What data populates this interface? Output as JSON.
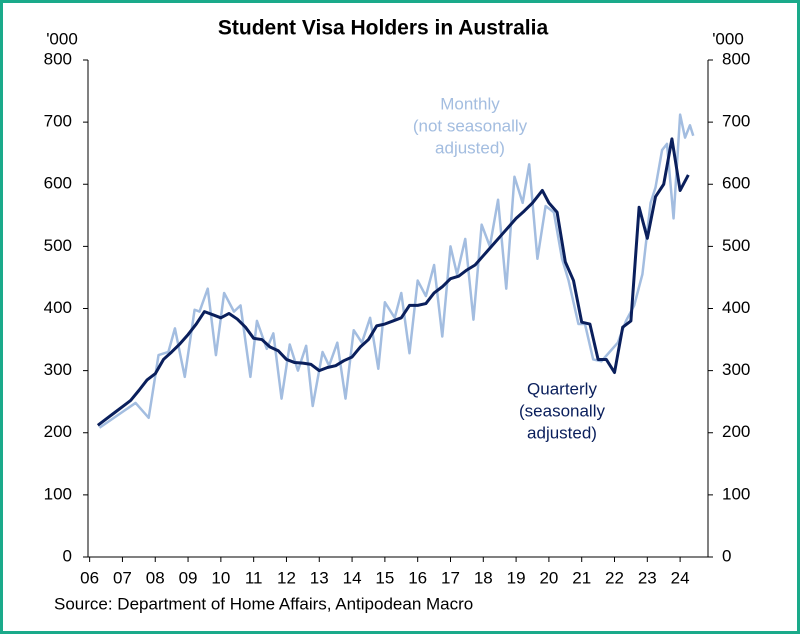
{
  "chart_data": {
    "type": "line",
    "title": "Student Visa Holders in Australia",
    "y_unit": "'000",
    "y2_unit": "'000",
    "source": "Source: Department of Home Affairs, Antipodean Macro",
    "annotations": [
      {
        "lines": [
          "Monthly",
          "(not seasonally",
          "adjusted)"
        ],
        "color": "#a3bde0"
      },
      {
        "lines": [
          "Quarterly",
          "(seasonally",
          "adjusted)"
        ],
        "color": "#0a1f5c"
      }
    ],
    "xlim": [
      5.95,
      24.85
    ],
    "xticks": [
      {
        "value": 6,
        "label": "06"
      },
      {
        "value": 7,
        "label": "07"
      },
      {
        "value": 8,
        "label": "08"
      },
      {
        "value": 9,
        "label": "09"
      },
      10,
      11,
      12,
      13,
      14,
      15,
      16,
      17,
      18,
      19,
      20,
      21,
      22,
      23,
      24
    ],
    "ylim": [
      0,
      800
    ],
    "yticks": [
      0,
      100,
      200,
      300,
      400,
      500,
      600,
      700,
      800
    ],
    "y2lim": [
      0,
      800
    ],
    "y2ticks": [
      0,
      100,
      200,
      300,
      400,
      500,
      600,
      700,
      800
    ],
    "series": [
      {
        "name": "Monthly",
        "color": "#a3bde0",
        "x": [
          6.3,
          7.4,
          7.8,
          8.1,
          8.4,
          8.6,
          8.9,
          9.2,
          9.35,
          9.6,
          9.85,
          10.1,
          10.4,
          10.6,
          10.9,
          11.1,
          11.4,
          11.6,
          11.85,
          12.1,
          12.35,
          12.6,
          12.8,
          13.1,
          13.3,
          13.55,
          13.8,
          14.05,
          14.3,
          14.55,
          14.8,
          15.0,
          15.3,
          15.5,
          15.75,
          16.0,
          16.25,
          16.5,
          16.75,
          17.0,
          17.2,
          17.45,
          17.7,
          17.95,
          18.2,
          18.45,
          18.7,
          18.95,
          19.2,
          19.4,
          19.65,
          19.9,
          20.15,
          20.4,
          20.6,
          20.9,
          21.1,
          21.35,
          21.6,
          21.85,
          22.1,
          22.35,
          22.6,
          22.85,
          23.1,
          23.25,
          23.45,
          23.6,
          23.8,
          24.0,
          24.15,
          24.3,
          24.4
        ],
        "values": [
          208,
          248,
          224,
          325,
          330,
          368,
          290,
          398,
          395,
          432,
          325,
          425,
          395,
          405,
          290,
          380,
          335,
          360,
          255,
          342,
          300,
          340,
          243,
          330,
          308,
          345,
          255,
          365,
          345,
          385,
          303,
          410,
          385,
          425,
          328,
          445,
          420,
          470,
          355,
          500,
          455,
          512,
          382,
          535,
          500,
          575,
          432,
          612,
          570,
          632,
          480,
          565,
          555,
          480,
          445,
          375,
          375,
          318,
          315,
          330,
          345,
          380,
          405,
          455,
          570,
          595,
          655,
          665,
          545,
          712,
          675,
          695,
          678
        ]
      },
      {
        "name": "Quarterly",
        "color": "#0a1f5c",
        "x": [
          6.25,
          6.5,
          6.75,
          7,
          7.25,
          7.5,
          7.75,
          8,
          8.25,
          8.5,
          8.75,
          9,
          9.25,
          9.5,
          9.75,
          10,
          10.25,
          10.5,
          10.75,
          11,
          11.25,
          11.5,
          11.75,
          12,
          12.25,
          12.5,
          12.75,
          13,
          13.25,
          13.5,
          13.75,
          14,
          14.25,
          14.5,
          14.75,
          15,
          15.25,
          15.5,
          15.75,
          16,
          16.25,
          16.5,
          16.75,
          17,
          17.25,
          17.5,
          17.75,
          18,
          18.25,
          18.5,
          18.75,
          19,
          19.25,
          19.5,
          19.8,
          20,
          20.25,
          20.5,
          20.75,
          21,
          21.25,
          21.5,
          21.75,
          22,
          22.25,
          22.5,
          22.75,
          23,
          23.25,
          23.5,
          23.75,
          24,
          24.25
        ],
        "values": [
          212,
          222,
          232,
          242,
          252,
          268,
          285,
          295,
          318,
          330,
          343,
          358,
          375,
          395,
          390,
          385,
          392,
          383,
          370,
          352,
          350,
          338,
          332,
          318,
          313,
          312,
          310,
          300,
          305,
          308,
          316,
          322,
          338,
          350,
          372,
          375,
          380,
          385,
          405,
          405,
          408,
          425,
          435,
          448,
          452,
          462,
          470,
          485,
          500,
          515,
          530,
          545,
          557,
          570,
          590,
          570,
          555,
          475,
          445,
          378,
          375,
          318,
          318,
          297,
          370,
          380,
          563,
          513,
          580,
          600,
          673,
          590,
          615
        ]
      }
    ]
  }
}
